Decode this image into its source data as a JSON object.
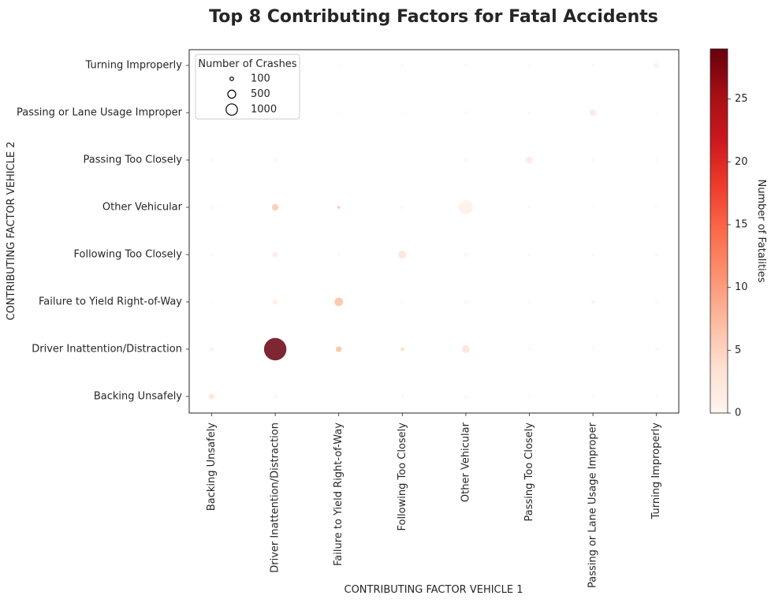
{
  "chart_data": {
    "type": "scatter",
    "title": "Top 8 Contributing Factors for Fatal Accidents",
    "xlabel": "CONTRIBUTING FACTOR VEHICLE 1",
    "ylabel": "CONTRIBUTING FACTOR VEHICLE 2",
    "categories": [
      "Backing Unsafely",
      "Driver Inattention/Distraction",
      "Failure to Yield Right-of-Way",
      "Following Too Closely",
      "Other Vehicular",
      "Passing Too Closely",
      "Passing or Lane Usage Improper",
      "Turning Improperly"
    ],
    "size_legend": {
      "title": "Number of Crashes",
      "placement": "upper-left",
      "entries": [
        {
          "label": "100",
          "value": 100
        },
        {
          "label": "500",
          "value": 500
        },
        {
          "label": "1000",
          "value": 1000
        }
      ]
    },
    "colorbar": {
      "label": "Number of Fatalities",
      "range": [
        0,
        29
      ],
      "ticks": [
        "0",
        "5",
        "10",
        "15",
        "20",
        "25"
      ],
      "colors": [
        "#fff5f0",
        "#fee0d2",
        "#fcbba1",
        "#fc9272",
        "#fb6a4a",
        "#ef3b2c",
        "#cb181d",
        "#a50f15",
        "#67000d"
      ]
    },
    "points": [
      {
        "x": "Backing Unsafely",
        "y": "Backing Unsafely",
        "crashes": 240,
        "fatalities": 3
      },
      {
        "x": "Backing Unsafely",
        "y": "Driver Inattention/Distraction",
        "crashes": 120,
        "fatalities": 1
      },
      {
        "x": "Backing Unsafely",
        "y": "Failure to Yield Right-of-Way",
        "crashes": 30,
        "fatalities": 0
      },
      {
        "x": "Backing Unsafely",
        "y": "Following Too Closely",
        "crashes": 70,
        "fatalities": 0
      },
      {
        "x": "Backing Unsafely",
        "y": "Other Vehicular",
        "crashes": 110,
        "fatalities": 0
      },
      {
        "x": "Backing Unsafely",
        "y": "Passing Too Closely",
        "crashes": 70,
        "fatalities": 0
      },
      {
        "x": "Driver Inattention/Distraction",
        "y": "Backing Unsafely",
        "crashes": 140,
        "fatalities": 0
      },
      {
        "x": "Driver Inattention/Distraction",
        "y": "Driver Inattention/Distraction",
        "crashes": 3900,
        "fatalities": 29
      },
      {
        "x": "Driver Inattention/Distraction",
        "y": "Failure to Yield Right-of-Way",
        "crashes": 240,
        "fatalities": 1
      },
      {
        "x": "Driver Inattention/Distraction",
        "y": "Following Too Closely",
        "crashes": 200,
        "fatalities": 2
      },
      {
        "x": "Driver Inattention/Distraction",
        "y": "Other Vehicular",
        "crashes": 340,
        "fatalities": 6
      },
      {
        "x": "Driver Inattention/Distraction",
        "y": "Passing Too Closely",
        "crashes": 90,
        "fatalities": 0
      },
      {
        "x": "Failure to Yield Right-of-Way",
        "y": "Driver Inattention/Distraction",
        "crashes": 260,
        "fatalities": 7
      },
      {
        "x": "Failure to Yield Right-of-Way",
        "y": "Failure to Yield Right-of-Way",
        "crashes": 560,
        "fatalities": 7
      },
      {
        "x": "Failure to Yield Right-of-Way",
        "y": "Following Too Closely",
        "crashes": 40,
        "fatalities": 0
      },
      {
        "x": "Failure to Yield Right-of-Way",
        "y": "Other Vehicular",
        "crashes": 80,
        "fatalities": 6
      },
      {
        "x": "Failure to Yield Right-of-Way",
        "y": "Passing or Lane Usage Improper",
        "crashes": 30,
        "fatalities": 0
      },
      {
        "x": "Failure to Yield Right-of-Way",
        "y": "Turning Improperly",
        "crashes": 30,
        "fatalities": 0
      },
      {
        "x": "Failure to Yield Right-of-Way",
        "y": "Backing Unsafely",
        "crashes": 20,
        "fatalities": 0
      },
      {
        "x": "Following Too Closely",
        "y": "Backing Unsafely",
        "crashes": 60,
        "fatalities": 0
      },
      {
        "x": "Following Too Closely",
        "y": "Driver Inattention/Distraction",
        "crashes": 120,
        "fatalities": 4
      },
      {
        "x": "Following Too Closely",
        "y": "Failure to Yield Right-of-Way",
        "crashes": 30,
        "fatalities": 0
      },
      {
        "x": "Following Too Closely",
        "y": "Following Too Closely",
        "crashes": 500,
        "fatalities": 3
      },
      {
        "x": "Following Too Closely",
        "y": "Other Vehicular",
        "crashes": 90,
        "fatalities": 0
      },
      {
        "x": "Following Too Closely",
        "y": "Passing Too Closely",
        "crashes": 30,
        "fatalities": 0
      },
      {
        "x": "Following Too Closely",
        "y": "Passing or Lane Usage Improper",
        "crashes": 40,
        "fatalities": 0
      },
      {
        "x": "Following Too Closely",
        "y": "Turning Improperly",
        "crashes": 40,
        "fatalities": 0
      },
      {
        "x": "Other Vehicular",
        "y": "Backing Unsafely",
        "crashes": 110,
        "fatalities": 0
      },
      {
        "x": "Other Vehicular",
        "y": "Driver Inattention/Distraction",
        "crashes": 480,
        "fatalities": 3
      },
      {
        "x": "Other Vehicular",
        "y": "Failure to Yield Right-of-Way",
        "crashes": 110,
        "fatalities": 0
      },
      {
        "x": "Other Vehicular",
        "y": "Following Too Closely",
        "crashes": 170,
        "fatalities": 0
      },
      {
        "x": "Other Vehicular",
        "y": "Other Vehicular",
        "crashes": 1550,
        "fatalities": 1
      },
      {
        "x": "Other Vehicular",
        "y": "Passing Too Closely",
        "crashes": 130,
        "fatalities": 0
      },
      {
        "x": "Other Vehicular",
        "y": "Passing or Lane Usage Improper",
        "crashes": 70,
        "fatalities": 0
      },
      {
        "x": "Other Vehicular",
        "y": "Turning Improperly",
        "crashes": 90,
        "fatalities": 0
      },
      {
        "x": "Passing Too Closely",
        "y": "Backing Unsafely",
        "crashes": 50,
        "fatalities": 0
      },
      {
        "x": "Passing Too Closely",
        "y": "Driver Inattention/Distraction",
        "crashes": 90,
        "fatalities": 0
      },
      {
        "x": "Passing Too Closely",
        "y": "Failure to Yield Right-of-Way",
        "crashes": 40,
        "fatalities": 0
      },
      {
        "x": "Passing Too Closely",
        "y": "Following Too Closely",
        "crashes": 50,
        "fatalities": 0
      },
      {
        "x": "Passing Too Closely",
        "y": "Other Vehicular",
        "crashes": 60,
        "fatalities": 0
      },
      {
        "x": "Passing Too Closely",
        "y": "Passing Too Closely",
        "crashes": 370,
        "fatalities": 2
      },
      {
        "x": "Passing Too Closely",
        "y": "Passing or Lane Usage Improper",
        "crashes": 50,
        "fatalities": 0
      },
      {
        "x": "Passing Too Closely",
        "y": "Turning Improperly",
        "crashes": 40,
        "fatalities": 0
      },
      {
        "x": "Passing or Lane Usage Improper",
        "y": "Backing Unsafely",
        "crashes": 40,
        "fatalities": 0
      },
      {
        "x": "Passing or Lane Usage Improper",
        "y": "Driver Inattention/Distraction",
        "crashes": 100,
        "fatalities": 0
      },
      {
        "x": "Passing or Lane Usage Improper",
        "y": "Failure to Yield Right-of-Way",
        "crashes": 80,
        "fatalities": 1
      },
      {
        "x": "Passing or Lane Usage Improper",
        "y": "Following Too Closely",
        "crashes": 60,
        "fatalities": 0
      },
      {
        "x": "Passing or Lane Usage Improper",
        "y": "Other Vehicular",
        "crashes": 50,
        "fatalities": 0
      },
      {
        "x": "Passing or Lane Usage Improper",
        "y": "Passing Too Closely",
        "crashes": 60,
        "fatalities": 0
      },
      {
        "x": "Passing or Lane Usage Improper",
        "y": "Passing or Lane Usage Improper",
        "crashes": 380,
        "fatalities": 2
      },
      {
        "x": "Passing or Lane Usage Improper",
        "y": "Turning Improperly",
        "crashes": 70,
        "fatalities": 0
      },
      {
        "x": "Turning Improperly",
        "y": "Backing Unsafely",
        "crashes": 30,
        "fatalities": 0
      },
      {
        "x": "Turning Improperly",
        "y": "Driver Inattention/Distraction",
        "crashes": 80,
        "fatalities": 0
      },
      {
        "x": "Turning Improperly",
        "y": "Failure to Yield Right-of-Way",
        "crashes": 60,
        "fatalities": 0
      },
      {
        "x": "Turning Improperly",
        "y": "Following Too Closely",
        "crashes": 70,
        "fatalities": 0
      },
      {
        "x": "Turning Improperly",
        "y": "Other Vehicular",
        "crashes": 70,
        "fatalities": 0
      },
      {
        "x": "Turning Improperly",
        "y": "Passing Too Closely",
        "crashes": 40,
        "fatalities": 0
      },
      {
        "x": "Turning Improperly",
        "y": "Passing or Lane Usage Improper",
        "crashes": 60,
        "fatalities": 0
      },
      {
        "x": "Turning Improperly",
        "y": "Turning Improperly",
        "crashes": 200,
        "fatalities": 1
      }
    ]
  }
}
